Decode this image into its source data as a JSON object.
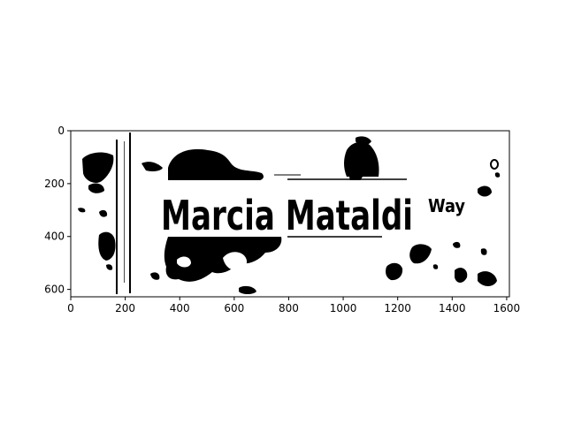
{
  "sign": {
    "main_text": "Marcia Mataldi",
    "suffix_text": "Way"
  },
  "axes": {
    "x_ticks": [
      "0",
      "200",
      "400",
      "600",
      "800",
      "1000",
      "1200",
      "1400",
      "1600"
    ],
    "y_ticks": [
      "0",
      "200",
      "400",
      "600"
    ]
  },
  "colors": {
    "foreground": "#000000",
    "background": "#ffffff"
  }
}
